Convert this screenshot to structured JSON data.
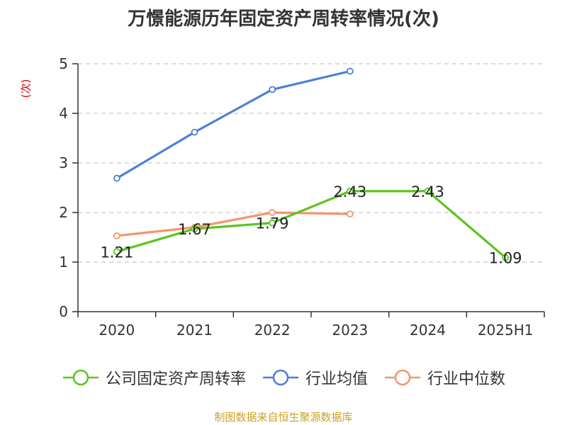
{
  "chart_data": {
    "type": "line",
    "title": "万憬能源历年固定资产周转率情况(次)",
    "ylabel": "(次)",
    "xlabel": "",
    "categories": [
      "2020",
      "2021",
      "2022",
      "2023",
      "2024",
      "2025H1"
    ],
    "ylim": [
      0,
      5
    ],
    "yticks": [
      0,
      1,
      2,
      3,
      4,
      5
    ],
    "grid": true,
    "legend_position": "bottom",
    "series": [
      {
        "name": "公司固定资产周转率",
        "color": "#5cc421",
        "values": [
          1.21,
          1.67,
          1.79,
          2.43,
          2.43,
          1.09
        ],
        "labels": [
          "1.21",
          "1.67",
          "1.79",
          "2.43",
          "2.43",
          "1.09"
        ]
      },
      {
        "name": "行业均值",
        "color": "#4e7fd7",
        "values": [
          2.69,
          3.62,
          4.48,
          4.85,
          null,
          null
        ]
      },
      {
        "name": "行业中位数",
        "color": "#f5956a",
        "values": [
          1.53,
          1.7,
          2.0,
          1.97,
          null,
          null
        ]
      }
    ]
  },
  "source_text": "制图数据来自恒生聚源数据库"
}
